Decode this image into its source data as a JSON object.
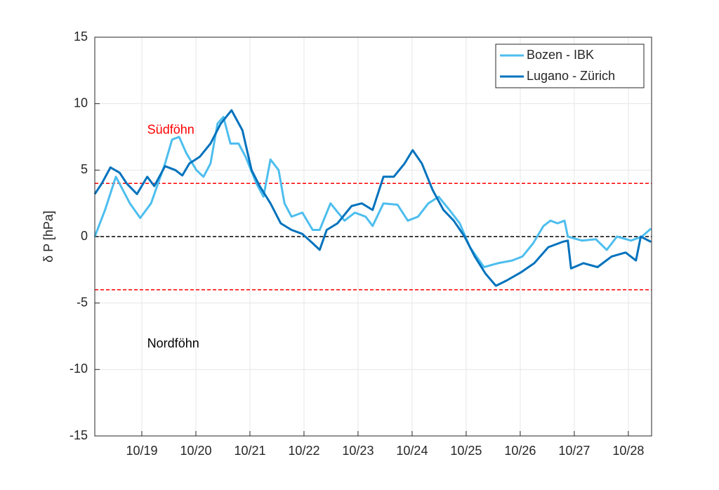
{
  "chart_data": {
    "type": "line",
    "ylabel": "δ P [hPa]",
    "xlim": [
      18.13,
      28.43
    ],
    "xticks": [
      {
        "value": 19,
        "label": "10/19"
      },
      {
        "value": 20,
        "label": "10/20"
      },
      {
        "value": 21,
        "label": "10/21"
      },
      {
        "value": 22,
        "label": "10/22"
      },
      {
        "value": 23,
        "label": "10/23"
      },
      {
        "value": 24,
        "label": "10/24"
      },
      {
        "value": 25,
        "label": "10/25"
      },
      {
        "value": 26,
        "label": "10/26"
      },
      {
        "value": 27,
        "label": "10/27"
      },
      {
        "value": 28,
        "label": "10/28"
      }
    ],
    "ylim": [
      -15,
      15
    ],
    "yticks": [
      -15,
      -10,
      -5,
      0,
      5,
      10,
      15
    ],
    "grid": true,
    "legend": "upper right",
    "reference_lines": [
      {
        "y": 4,
        "color": "#ff0000"
      },
      {
        "y": 0,
        "color": "#000000"
      },
      {
        "y": -4,
        "color": "#ff0000"
      }
    ],
    "annotations": [
      {
        "text": "Südföhn",
        "x": 19.1,
        "y": 8,
        "color": "#ff0000"
      },
      {
        "text": "Nordföhn",
        "x": 19.1,
        "y": -8.1,
        "color": "#000000"
      }
    ],
    "series": [
      {
        "name": "Bozen - IBK",
        "color": "#4dbeee",
        "x": [
          18.13,
          18.32,
          18.52,
          18.65,
          18.78,
          18.97,
          19.17,
          19.3,
          19.43,
          19.56,
          19.69,
          19.82,
          20.01,
          20.14,
          20.27,
          20.4,
          20.51,
          20.64,
          20.79,
          20.92,
          21.12,
          21.25,
          21.38,
          21.53,
          21.64,
          21.77,
          21.97,
          22.16,
          22.29,
          22.49,
          22.75,
          22.94,
          23.14,
          23.27,
          23.47,
          23.73,
          23.92,
          24.11,
          24.3,
          24.49,
          24.69,
          24.88,
          25.07,
          25.33,
          25.59,
          25.85,
          26.04,
          26.24,
          26.43,
          26.56,
          26.69,
          26.82,
          26.88,
          27.14,
          27.4,
          27.6,
          27.79,
          28.05,
          28.25,
          28.42
        ],
        "values": [
          0,
          2,
          4.5,
          3.5,
          2.5,
          1.4,
          2.5,
          4,
          5.5,
          7.3,
          7.5,
          6.3,
          5,
          4.5,
          5.5,
          8.5,
          9,
          7,
          7,
          6,
          4,
          3,
          5.8,
          5,
          2.5,
          1.5,
          1.8,
          0.5,
          0.5,
          2.5,
          1.2,
          1.8,
          1.5,
          0.8,
          2.5,
          2.4,
          1.2,
          1.5,
          2.5,
          3,
          2,
          1,
          -0.8,
          -2.3,
          -2,
          -1.8,
          -1.5,
          -0.5,
          0.8,
          1.2,
          1,
          1.2,
          0,
          -0.3,
          -0.2,
          -1,
          0,
          -0.3,
          0,
          0.6
        ]
      },
      {
        "name": "Lugano - Zürich",
        "color": "#0072bd",
        "x": [
          18.13,
          18.26,
          18.42,
          18.59,
          18.72,
          18.91,
          19.1,
          19.23,
          19.43,
          19.62,
          19.75,
          19.88,
          20.07,
          20.27,
          20.46,
          20.66,
          20.86,
          21.03,
          21.18,
          21.38,
          21.57,
          21.77,
          21.97,
          22.16,
          22.29,
          22.42,
          22.62,
          22.88,
          23.07,
          23.27,
          23.47,
          23.66,
          23.86,
          24.01,
          24.18,
          24.38,
          24.58,
          24.77,
          24.97,
          25.16,
          25.36,
          25.55,
          25.75,
          26.01,
          26.26,
          26.52,
          26.78,
          26.88,
          26.94,
          27.17,
          27.43,
          27.69,
          27.95,
          28.14,
          28.23,
          28.42
        ],
        "values": [
          3.2,
          4,
          5.2,
          4.8,
          4,
          3.2,
          4.5,
          3.8,
          5.3,
          5,
          4.6,
          5.5,
          6,
          7,
          8.5,
          9.5,
          8,
          5,
          3.8,
          2.5,
          1,
          0.5,
          0.2,
          -0.5,
          -1,
          0.5,
          1,
          2.3,
          2.5,
          2,
          4.5,
          4.5,
          5.5,
          6.5,
          5.5,
          3.5,
          2,
          1.2,
          0,
          -1.5,
          -2.8,
          -3.7,
          -3.3,
          -2.7,
          -2,
          -0.8,
          -0.4,
          -0.3,
          -2.4,
          -2,
          -2.3,
          -1.5,
          -1.2,
          -1.8,
          0,
          -0.4
        ]
      }
    ]
  }
}
